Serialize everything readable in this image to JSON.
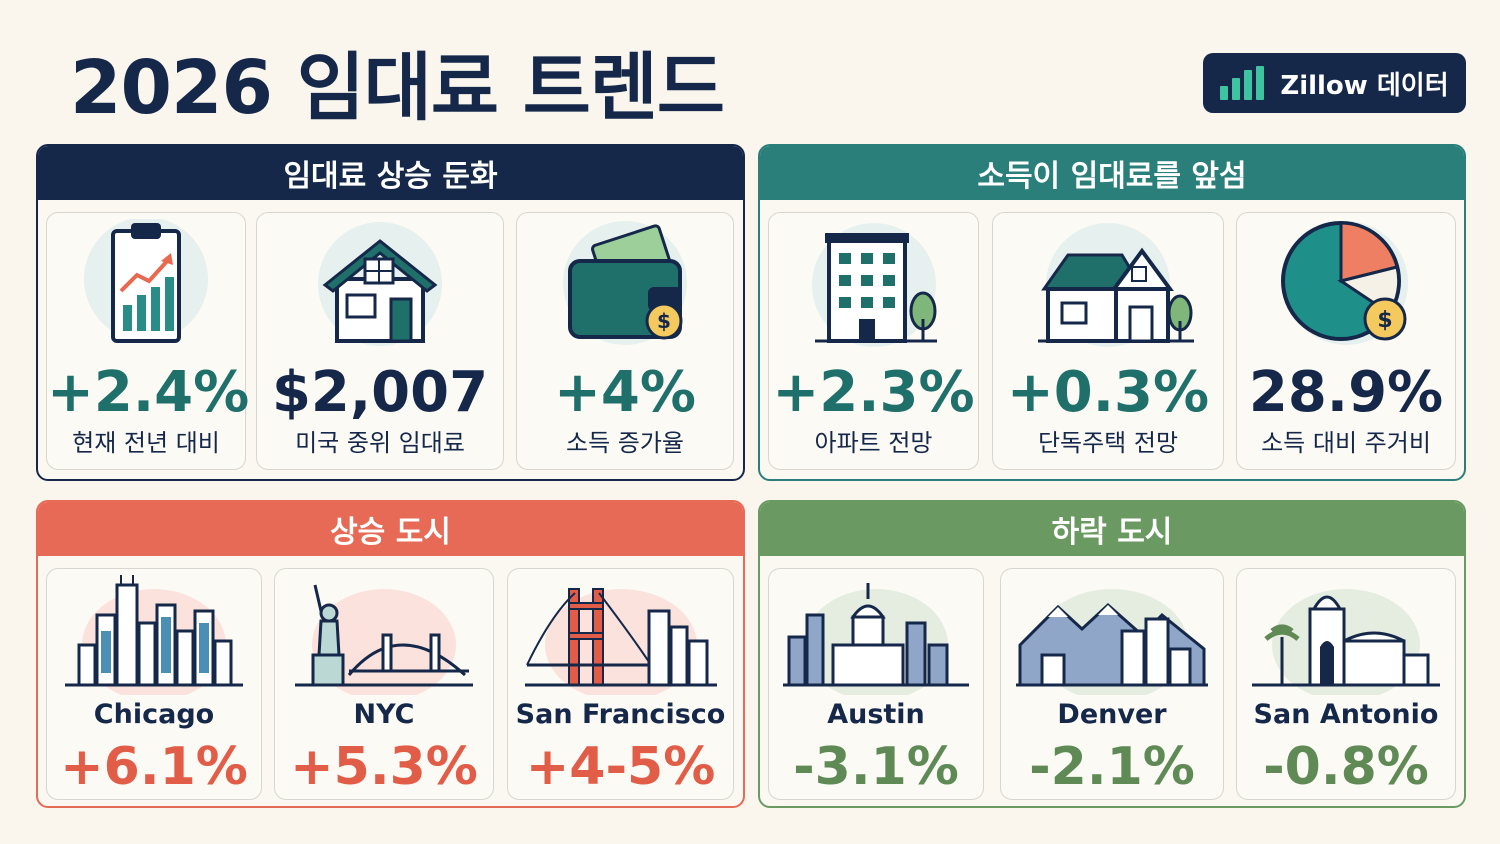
{
  "title": "2026 임대료 트렌드",
  "badge": {
    "label": "Zillow 데이터",
    "icon": "bar-chart-icon"
  },
  "colors": {
    "navy": "#15284a",
    "teal": "#2a7f7a",
    "coral": "#e66a55",
    "green": "#6a9a62",
    "statNavy": "#15284a",
    "statTeal": "#1f6f6a",
    "statCoral": "#e25d47",
    "statGreen": "#5f8a55"
  },
  "sections": {
    "rent_slowdown": {
      "header": "임대료 상승 둔화",
      "cards": [
        {
          "value": "+2.4%",
          "label": "현재 전년 대비",
          "icon": "clipboard-chart-icon"
        },
        {
          "value": "$2,007",
          "label": "미국 중위 임대료",
          "icon": "house-icon"
        },
        {
          "value": "+4%",
          "label": "소득 증가율",
          "icon": "wallet-icon"
        }
      ]
    },
    "income_outpaces": {
      "header": "소득이 임대료를 앞섬",
      "cards": [
        {
          "value": "+2.3%",
          "label": "아파트 전망",
          "icon": "apartment-building-icon"
        },
        {
          "value": "+0.3%",
          "label": "단독주택 전망",
          "icon": "single-family-home-icon"
        },
        {
          "value": "28.9%",
          "label": "소득 대비 주거비",
          "icon": "pie-chart-icon"
        }
      ]
    },
    "rising_cities": {
      "header": "상승 도시",
      "cities": [
        {
          "name": "Chicago",
          "change": "+6.1%",
          "icon": "chicago-skyline-icon"
        },
        {
          "name": "NYC",
          "change": "+5.3%",
          "icon": "nyc-skyline-icon"
        },
        {
          "name": "San Francisco",
          "change": "+4-5%",
          "icon": "golden-gate-icon"
        }
      ]
    },
    "falling_cities": {
      "header": "하락 도시",
      "cities": [
        {
          "name": "Austin",
          "change": "-3.1%",
          "icon": "austin-capitol-icon"
        },
        {
          "name": "Denver",
          "change": "-2.1%",
          "icon": "denver-mountains-icon"
        },
        {
          "name": "San Antonio",
          "change": "-0.8%",
          "icon": "alamo-mission-icon"
        }
      ]
    }
  }
}
